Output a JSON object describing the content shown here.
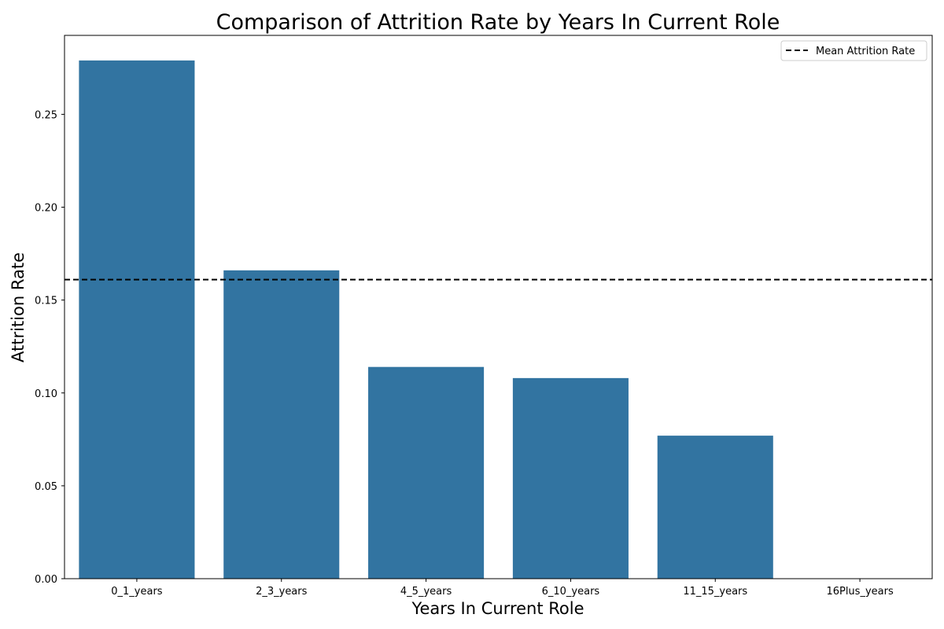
{
  "chart_data": {
    "type": "bar",
    "title": "Comparison of Attrition Rate by Years In Current Role",
    "xlabel": "Years In Current Role",
    "ylabel": "Attrition Rate",
    "categories": [
      "0_1_years",
      "2_3_years",
      "4_5_years",
      "6_10_years",
      "11_15_years",
      "16Plus_years"
    ],
    "values": [
      0.279,
      0.166,
      0.114,
      0.108,
      0.077,
      0.0
    ],
    "ylim": [
      0,
      0.2925
    ],
    "yticks": [
      "0.00",
      "0.05",
      "0.10",
      "0.15",
      "0.20",
      "0.25"
    ],
    "reference_line": {
      "label": "Mean Attrition Rate",
      "value": 0.161,
      "style": "dashed"
    },
    "legend": {
      "position": "top-right",
      "entries": [
        "Mean Attrition Rate"
      ]
    },
    "grid": false,
    "colors": {
      "bar": "#3274a1",
      "reference_line": "#000000"
    }
  }
}
